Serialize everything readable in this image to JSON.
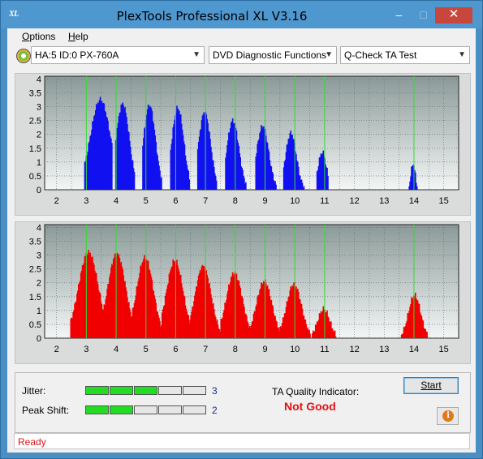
{
  "window": {
    "title": "PlexTools Professional XL V3.16",
    "logo": "XL",
    "minimize": "–",
    "maximize": "□",
    "close": "✕"
  },
  "menu": {
    "options": "Options",
    "help": "Help"
  },
  "toolbar": {
    "drive": "HA:5 ID:0  PX-760A",
    "function": "DVD Diagnostic Functions",
    "test": "Q-Check TA Test"
  },
  "chart_data": [
    {
      "type": "histogram",
      "color": "#1010f0",
      "x_ticks": [
        "2",
        "3",
        "4",
        "5",
        "6",
        "7",
        "8",
        "9",
        "10",
        "11",
        "12",
        "13",
        "14",
        "15"
      ],
      "y_ticks": [
        "4",
        "3.5",
        "3",
        "2.5",
        "2",
        "1.5",
        "1",
        "0.5",
        "0"
      ],
      "xlim": [
        1.6,
        15.5
      ],
      "ylim": [
        0,
        4.1
      ],
      "grid": true,
      "markers": [
        3,
        4,
        5,
        6,
        7,
        8,
        9,
        10,
        11,
        14
      ],
      "peaks": [
        {
          "center": 3.45,
          "height": 3.25,
          "width": 0.33,
          "start": 2.9,
          "end": 3.85
        },
        {
          "center": 4.2,
          "height": 3.1,
          "width": 0.22,
          "start": 3.95,
          "end": 4.6
        },
        {
          "center": 5.1,
          "height": 3.05,
          "width": 0.2,
          "start": 4.85,
          "end": 5.5
        },
        {
          "center": 6.05,
          "height": 2.95,
          "width": 0.2,
          "start": 5.8,
          "end": 6.45
        },
        {
          "center": 6.95,
          "height": 2.8,
          "width": 0.2,
          "start": 6.7,
          "end": 7.35
        },
        {
          "center": 7.9,
          "height": 2.5,
          "width": 0.2,
          "start": 7.65,
          "end": 8.35
        },
        {
          "center": 8.9,
          "height": 2.3,
          "width": 0.2,
          "start": 8.65,
          "end": 9.35
        },
        {
          "center": 9.85,
          "height": 2.05,
          "width": 0.18,
          "start": 9.6,
          "end": 10.3
        },
        {
          "center": 10.9,
          "height": 1.35,
          "width": 0.14,
          "start": 10.7,
          "end": 11.1
        },
        {
          "center": 13.95,
          "height": 0.95,
          "width": 0.07,
          "start": 13.8,
          "end": 14.1
        }
      ]
    },
    {
      "type": "histogram",
      "color": "#f00000",
      "x_ticks": [
        "2",
        "3",
        "4",
        "5",
        "6",
        "7",
        "8",
        "9",
        "10",
        "11",
        "12",
        "13",
        "14",
        "15"
      ],
      "y_ticks": [
        "4",
        "3.5",
        "3",
        "2.5",
        "2",
        "1.5",
        "1",
        "0.5",
        "0"
      ],
      "xlim": [
        1.6,
        15.5
      ],
      "ylim": [
        0,
        4.1
      ],
      "grid": true,
      "markers": [
        3,
        4,
        5,
        6,
        7,
        8,
        9,
        10,
        11,
        14
      ],
      "peaks": [
        {
          "center": 3.05,
          "height": 3.1,
          "width": 0.33,
          "start": 2.45,
          "end": 3.6
        },
        {
          "center": 4.0,
          "height": 3.05,
          "width": 0.3,
          "start": 3.55,
          "end": 4.55
        },
        {
          "center": 4.95,
          "height": 2.9,
          "width": 0.28,
          "start": 4.5,
          "end": 5.5
        },
        {
          "center": 5.95,
          "height": 2.8,
          "width": 0.28,
          "start": 5.5,
          "end": 6.5
        },
        {
          "center": 6.9,
          "height": 2.6,
          "width": 0.27,
          "start": 6.45,
          "end": 7.5
        },
        {
          "center": 7.95,
          "height": 2.35,
          "width": 0.27,
          "start": 7.5,
          "end": 8.5
        },
        {
          "center": 8.95,
          "height": 2.05,
          "width": 0.26,
          "start": 8.5,
          "end": 9.5
        },
        {
          "center": 9.95,
          "height": 1.95,
          "width": 0.25,
          "start": 9.5,
          "end": 10.5
        },
        {
          "center": 10.95,
          "height": 1.05,
          "width": 0.2,
          "start": 10.55,
          "end": 11.35
        },
        {
          "center": 14.0,
          "height": 1.55,
          "width": 0.2,
          "start": 13.55,
          "end": 14.45
        }
      ]
    }
  ],
  "meters": {
    "jitter": {
      "label": "Jitter:",
      "value": "3",
      "lit": 3,
      "total": 5
    },
    "peak_shift": {
      "label": "Peak Shift:",
      "value": "2",
      "lit": 2,
      "total": 5
    }
  },
  "ta": {
    "label": "TA Quality Indicator:",
    "value": "Not Good"
  },
  "buttons": {
    "start": "Start",
    "info": "i"
  },
  "status": {
    "text": "Ready"
  }
}
